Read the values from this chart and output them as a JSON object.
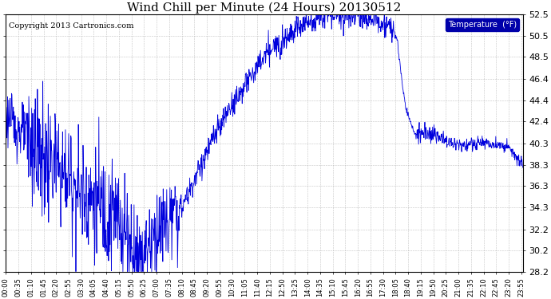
{
  "title": "Wind Chill per Minute (24 Hours) 20130512",
  "copyright": "Copyright 2013 Cartronics.com",
  "legend_label": "Temperature  (°F)",
  "line_color": "#0000dd",
  "background_color": "#ffffff",
  "grid_color": "#aaaaaa",
  "ylim_min": 28.2,
  "ylim_max": 52.5,
  "yticks": [
    28.2,
    30.2,
    32.2,
    34.3,
    36.3,
    38.3,
    40.3,
    42.4,
    44.4,
    46.4,
    48.5,
    50.5,
    52.5
  ],
  "total_minutes": 1440,
  "legend_bg": "#0000aa",
  "legend_fg": "#ffffff",
  "title_fontsize": 11,
  "copyright_fontsize": 7,
  "ytick_fontsize": 8,
  "xtick_fontsize": 6
}
